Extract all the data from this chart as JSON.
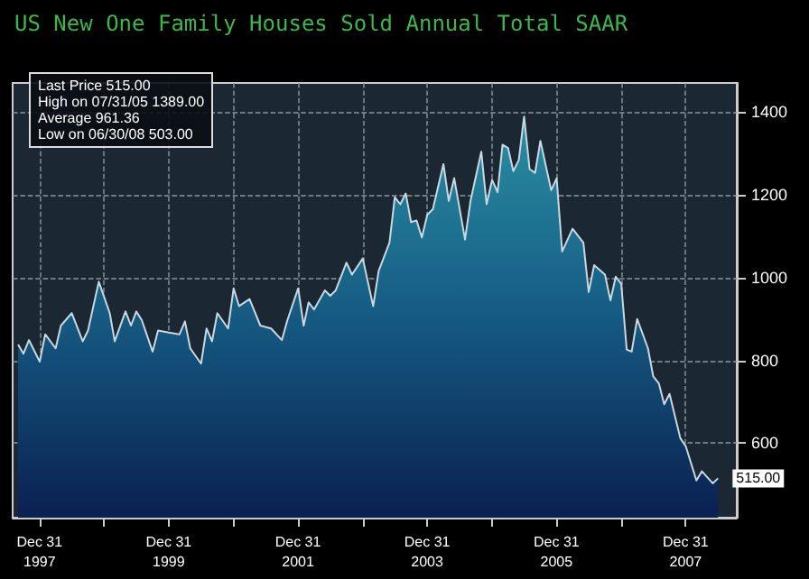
{
  "chart_data": {
    "type": "area",
    "title": "US New One Family Houses Sold Annual Total SAAR",
    "x": [
      "1997-09",
      "1997-10",
      "1997-11",
      "1998-01",
      "1998-02",
      "1998-04",
      "1998-05",
      "1998-07",
      "1998-09",
      "1998-10",
      "1998-12",
      "1999-02",
      "1999-03",
      "1999-05",
      "1999-06",
      "1999-07",
      "1999-08",
      "1999-10",
      "1999-11",
      "2000-01",
      "2000-03",
      "2000-04",
      "2000-05",
      "2000-07",
      "2000-08",
      "2000-09",
      "2000-10",
      "2000-12",
      "2001-01",
      "2001-02",
      "2001-04",
      "2001-06",
      "2001-08",
      "2001-10",
      "2001-11",
      "2002-01",
      "2002-02",
      "2002-03",
      "2002-04",
      "2002-06",
      "2002-07",
      "2002-08",
      "2002-10",
      "2002-11",
      "2003-01",
      "2003-03",
      "2003-04",
      "2003-06",
      "2003-07",
      "2003-08",
      "2003-09",
      "2003-10",
      "2003-11",
      "2003-12",
      "2004-01",
      "2004-02",
      "2004-04",
      "2004-05",
      "2004-06",
      "2004-08",
      "2004-09",
      "2004-11",
      "2004-12",
      "2005-01",
      "2005-02",
      "2005-03",
      "2005-04",
      "2005-05",
      "2005-06",
      "2005-07",
      "2005-08",
      "2005-09",
      "2005-10",
      "2005-12",
      "2006-01",
      "2006-02",
      "2006-04",
      "2006-06",
      "2006-07",
      "2006-08",
      "2006-10",
      "2006-11",
      "2006-12",
      "2007-01",
      "2007-02",
      "2007-03",
      "2007-04",
      "2007-06",
      "2007-07",
      "2007-08",
      "2007-09",
      "2007-10",
      "2007-12",
      "2008-01",
      "2008-03",
      "2008-04",
      "2008-06",
      "2008-07"
    ],
    "series": [
      {
        "color": "#c8d8e0",
        "values": [
          838,
          816,
          849,
          797,
          863,
          829,
          884,
          914,
          846,
          872,
          990,
          914,
          846,
          918,
          884,
          918,
          897,
          821,
          872,
          867,
          863,
          894,
          829,
          792,
          877,
          846,
          914,
          877,
          974,
          931,
          948,
          884,
          877,
          849,
          897,
          974,
          884,
          940,
          923,
          969,
          956,
          969,
          1036,
          1007,
          1046,
          931,
          1016,
          1084,
          1194,
          1177,
          1203,
          1134,
          1138,
          1097,
          1152,
          1165,
          1274,
          1185,
          1240,
          1092,
          1185,
          1304,
          1177,
          1236,
          1206,
          1321,
          1313,
          1257,
          1284,
          1389,
          1262,
          1253,
          1330,
          1211,
          1240,
          1063,
          1118,
          1084,
          965,
          1030,
          1007,
          945,
          1002,
          985,
          826,
          821,
          900,
          829,
          761,
          745,
          694,
          719,
          612,
          592,
          510,
          532,
          503,
          515
        ]
      }
    ],
    "xlim": [
      "1997-08-01",
      "2008-10-15"
    ],
    "xticks": [
      {
        "value": "1997-12-31",
        "label": "Dec 31 1997"
      },
      {
        "value": "1998-12-31",
        "label": null
      },
      {
        "value": "1999-12-31",
        "label": "Dec 31 1999"
      },
      {
        "value": "2000-12-31",
        "label": null
      },
      {
        "value": "2001-12-31",
        "label": "Dec 31 2001"
      },
      {
        "value": "2002-12-31",
        "label": null
      },
      {
        "value": "2003-12-31",
        "label": "Dec 31 2003"
      },
      {
        "value": "2004-12-31",
        "label": null
      },
      {
        "value": "2005-12-31",
        "label": "Dec 31 2005"
      },
      {
        "value": "2006-12-31",
        "label": null
      },
      {
        "value": "2007-12-31",
        "label": "Dec 31 2007"
      }
    ],
    "ylim": [
      420,
      1470
    ],
    "yticks": [
      600,
      800,
      1000,
      1200,
      1400
    ],
    "grid": true,
    "marker": "none",
    "annotations": [
      "Last Price 515.00",
      "High on 07/31/05 1389.00",
      "Average 961.36",
      "Low on 06/30/08 503.00",
      {
        "text": "515.00",
        "x": "2008-07",
        "y": 515
      }
    ]
  }
}
